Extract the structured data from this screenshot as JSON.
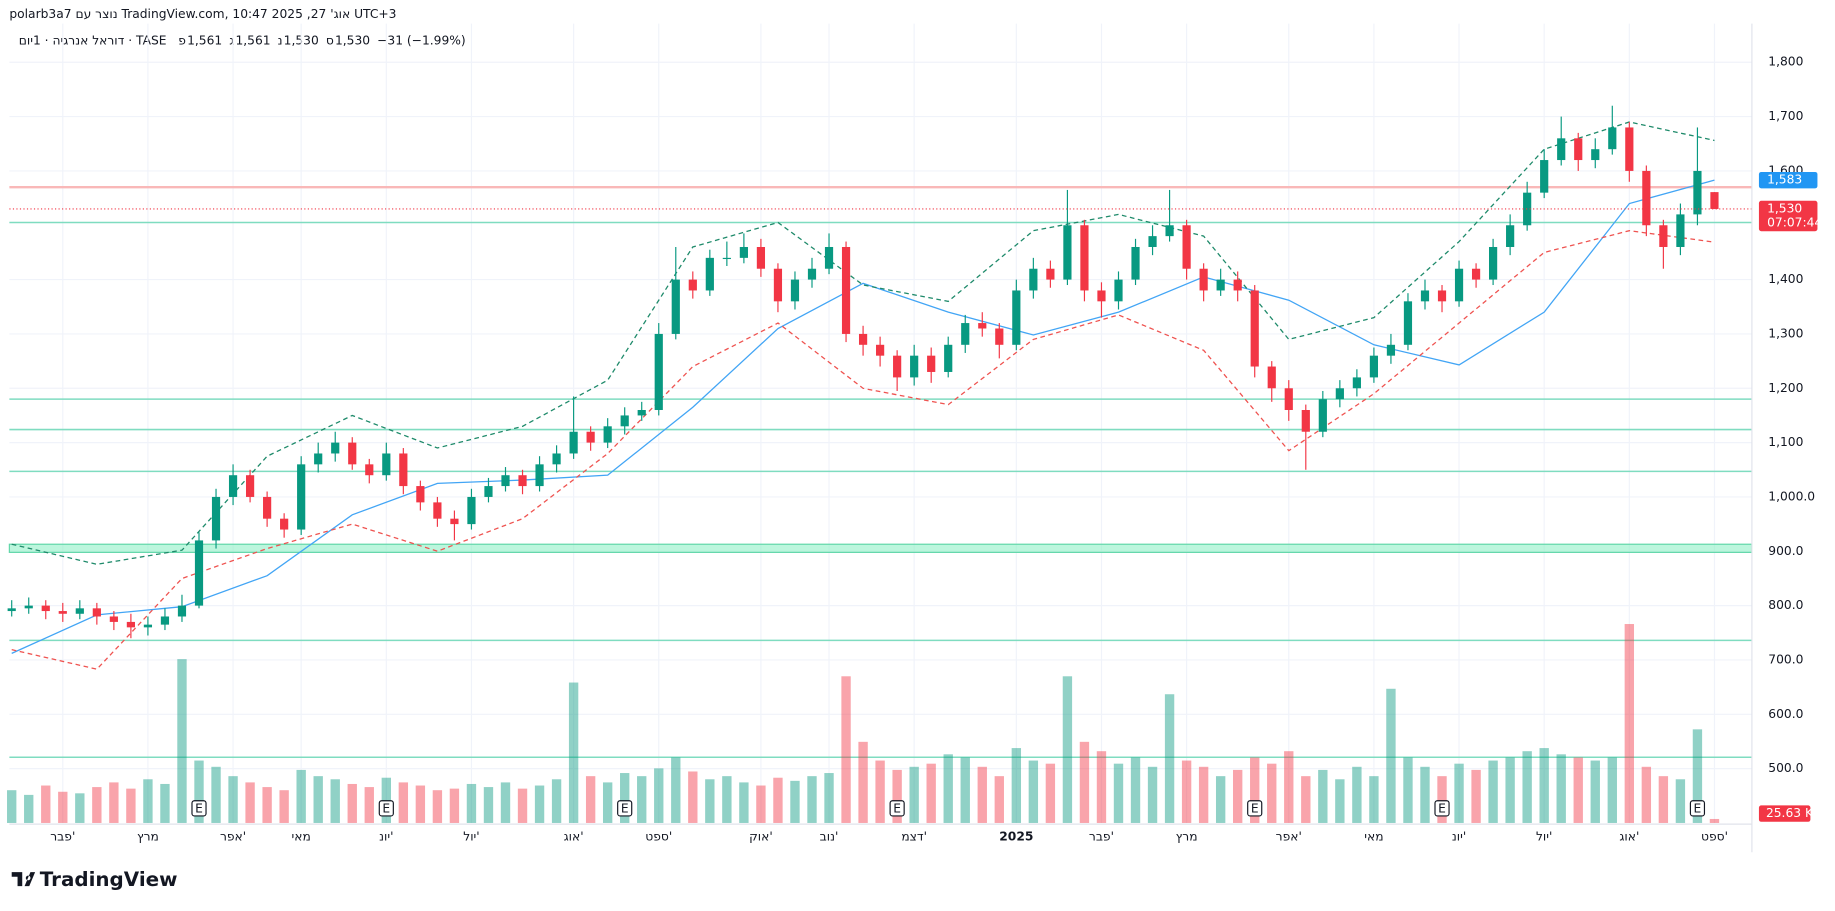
{
  "header": {
    "author_line": "polarb3a7 נוצר עם TradingView.com, אוג' 27, 2025 10:47 UTC+3"
  },
  "legend": {
    "symbol": "דוראל אנרגיה · 1יום · TASE",
    "ohlc": [
      {
        "key": "פ",
        "value": "1,561"
      },
      {
        "key": "ג",
        "value": "1,561"
      },
      {
        "key": "נ",
        "value": "1,530"
      },
      {
        "key": "ס",
        "value": "1,530"
      }
    ],
    "change": "−31 (−1.99%)"
  },
  "footer": {
    "logo": "TradingView"
  },
  "chart_data": {
    "type": "candlestick",
    "categories": [
      null,
      null,
      null,
      "פבר'",
      null,
      null,
      null,
      null,
      "מרץ",
      null,
      null,
      null,
      null,
      "אפר'",
      null,
      null,
      null,
      "מאי",
      null,
      null,
      null,
      null,
      "יונ'",
      null,
      null,
      null,
      null,
      "יול'",
      null,
      null,
      null,
      null,
      null,
      "אוג'",
      null,
      null,
      null,
      null,
      "ספט'",
      null,
      null,
      null,
      null,
      null,
      "אוק'",
      null,
      null,
      null,
      "נוב'",
      null,
      null,
      null,
      null,
      "דצמ'",
      null,
      null,
      null,
      null,
      null,
      "2025",
      null,
      null,
      null,
      null,
      "פבר'",
      null,
      null,
      null,
      null,
      "מרץ",
      null,
      null,
      null,
      null,
      null,
      "אפר'",
      null,
      null,
      null,
      null,
      "מאי",
      null,
      null,
      null,
      null,
      "יונ'",
      null,
      null,
      null,
      null,
      "יול'",
      null,
      null,
      null,
      null,
      "אוג'",
      null,
      null,
      null,
      null,
      "ספט'"
    ],
    "open": [
      790,
      795,
      800,
      790,
      785,
      795,
      780,
      770,
      760,
      765,
      780,
      800,
      920,
      1000,
      1040,
      1000,
      960,
      940,
      1060,
      1080,
      1100,
      1060,
      1040,
      1080,
      1020,
      990,
      960,
      950,
      1000,
      1020,
      1040,
      1020,
      1060,
      1080,
      1120,
      1100,
      1130,
      1150,
      1160,
      1300,
      1400,
      1380,
      1440,
      1440,
      1460,
      1420,
      1360,
      1400,
      1420,
      1460,
      1300,
      1280,
      1260,
      1220,
      1260,
      1230,
      1280,
      1320,
      1310,
      1280,
      1380,
      1420,
      1400,
      1500,
      1380,
      1360,
      1400,
      1460,
      1480,
      1500,
      1420,
      1380,
      1400,
      1380,
      1240,
      1200,
      1160,
      1120,
      1180,
      1200,
      1220,
      1260,
      1280,
      1360,
      1380,
      1360,
      1420,
      1400,
      1460,
      1500,
      1560,
      1620,
      1660,
      1620,
      1640,
      1680,
      1600,
      1500,
      1460,
      1520,
      1561
    ],
    "high": [
      810,
      815,
      810,
      805,
      810,
      805,
      790,
      785,
      780,
      795,
      820,
      935,
      1015,
      1060,
      1050,
      1010,
      970,
      1075,
      1100,
      1120,
      1110,
      1070,
      1100,
      1090,
      1030,
      1000,
      975,
      1015,
      1035,
      1055,
      1050,
      1075,
      1095,
      1185,
      1130,
      1145,
      1165,
      1175,
      1320,
      1460,
      1415,
      1455,
      1470,
      1485,
      1475,
      1430,
      1415,
      1440,
      1485,
      1470,
      1315,
      1295,
      1270,
      1280,
      1275,
      1295,
      1335,
      1340,
      1320,
      1400,
      1440,
      1435,
      1565,
      1510,
      1395,
      1415,
      1475,
      1500,
      1565,
      1510,
      1430,
      1420,
      1415,
      1390,
      1250,
      1215,
      1170,
      1195,
      1215,
      1235,
      1275,
      1300,
      1375,
      1400,
      1390,
      1435,
      1430,
      1475,
      1520,
      1580,
      1640,
      1700,
      1670,
      1660,
      1720,
      1690,
      1610,
      1510,
      1540,
      1680,
      1561
    ],
    "low": [
      780,
      785,
      775,
      770,
      775,
      765,
      755,
      740,
      745,
      755,
      770,
      795,
      905,
      985,
      990,
      945,
      925,
      930,
      1045,
      1065,
      1050,
      1025,
      1030,
      1005,
      975,
      945,
      920,
      940,
      990,
      1010,
      1005,
      1010,
      1045,
      1070,
      1085,
      1090,
      1115,
      1140,
      1150,
      1290,
      1365,
      1370,
      1425,
      1430,
      1405,
      1340,
      1345,
      1385,
      1410,
      1285,
      1260,
      1240,
      1195,
      1205,
      1210,
      1220,
      1265,
      1295,
      1255,
      1270,
      1365,
      1385,
      1390,
      1360,
      1330,
      1345,
      1390,
      1445,
      1470,
      1400,
      1360,
      1370,
      1360,
      1220,
      1175,
      1140,
      1050,
      1110,
      1165,
      1185,
      1210,
      1245,
      1270,
      1345,
      1340,
      1350,
      1385,
      1390,
      1445,
      1490,
      1550,
      1610,
      1600,
      1605,
      1630,
      1580,
      1480,
      1420,
      1445,
      1500,
      1530
    ],
    "close": [
      795,
      800,
      790,
      785,
      795,
      780,
      770,
      760,
      765,
      780,
      800,
      920,
      1000,
      1040,
      1000,
      960,
      940,
      1060,
      1080,
      1100,
      1060,
      1040,
      1080,
      1020,
      990,
      960,
      950,
      1000,
      1020,
      1040,
      1020,
      1060,
      1080,
      1120,
      1100,
      1130,
      1150,
      1160,
      1300,
      1400,
      1380,
      1440,
      1440,
      1460,
      1420,
      1360,
      1400,
      1420,
      1460,
      1300,
      1280,
      1260,
      1220,
      1260,
      1230,
      1280,
      1320,
      1310,
      1280,
      1380,
      1420,
      1400,
      1500,
      1380,
      1360,
      1400,
      1460,
      1480,
      1500,
      1420,
      1380,
      1400,
      1380,
      1240,
      1200,
      1160,
      1120,
      1180,
      1200,
      1220,
      1260,
      1280,
      1360,
      1380,
      1360,
      1420,
      1400,
      1460,
      1500,
      1560,
      1620,
      1660,
      1620,
      1640,
      1680,
      1600,
      1500,
      1460,
      1520,
      1600,
      1530
    ],
    "volume": [
      210,
      180,
      240,
      200,
      190,
      230,
      260,
      220,
      280,
      250,
      1050,
      400,
      360,
      300,
      260,
      230,
      210,
      340,
      300,
      280,
      250,
      230,
      290,
      260,
      240,
      210,
      220,
      250,
      230,
      260,
      220,
      240,
      280,
      900,
      300,
      260,
      320,
      300,
      350,
      420,
      330,
      280,
      300,
      260,
      240,
      290,
      270,
      300,
      320,
      940,
      520,
      400,
      340,
      360,
      380,
      440,
      420,
      360,
      300,
      480,
      400,
      380,
      940,
      520,
      460,
      380,
      420,
      360,
      825,
      400,
      360,
      300,
      340,
      420,
      380,
      460,
      300,
      340,
      280,
      360,
      300,
      860,
      420,
      360,
      300,
      380,
      340,
      400,
      420,
      460,
      480,
      440,
      420,
      400,
      420,
      1275,
      360,
      300,
      280,
      600,
      25.63
    ],
    "volume_label": "25.63 K",
    "volume_lim": [
      0,
      1500
    ],
    "up_color": "#089981",
    "down_color": "#f23645",
    "overlay_x": [
      0,
      5,
      10,
      15,
      20,
      25,
      30,
      35,
      40,
      45,
      50,
      55,
      60,
      65,
      70,
      75,
      80,
      85,
      90,
      95,
      100
    ],
    "overlays": [
      {
        "color": "#42a5f5",
        "dashed": false,
        "values": [
          712,
          783,
          798,
          855,
          967,
          1025,
          1031,
          1040,
          1165,
          1310,
          1393,
          1340,
          1298,
          1340,
          1405,
          1362,
          1280,
          1243,
          1340,
          1540,
          1583
        ]
      },
      {
        "color": "#1e8a6a",
        "dashed": true,
        "values": [
          913,
          876,
          902,
          1075,
          1150,
          1090,
          1130,
          1215,
          1460,
          1505,
          1390,
          1360,
          1490,
          1520,
          1480,
          1290,
          1330,
          1470,
          1640,
          1690,
          1656
        ]
      },
      {
        "color": "#ef5350",
        "dashed": true,
        "values": [
          719,
          683,
          850,
          905,
          950,
          900,
          960,
          1080,
          1240,
          1320,
          1200,
          1170,
          1290,
          1335,
          1270,
          1085,
          1190,
          1320,
          1450,
          1490,
          1469
        ]
      }
    ],
    "levels": [
      {
        "value": 1570,
        "color": "#f9b8b8"
      },
      {
        "value": 1505,
        "color": "#7fdcc0"
      },
      {
        "value": 1180,
        "color": "#7fdcc0"
      },
      {
        "value": 1124,
        "color": "#7fdcc0"
      },
      {
        "value": 1047,
        "color": "#7fdcc0"
      },
      {
        "value": 736,
        "color": "#7fdcc0"
      },
      {
        "value": 521,
        "color": "#7fdcc0"
      }
    ],
    "zone": {
      "range": [
        898,
        913
      ],
      "color": "#8ff0c6"
    },
    "earnings": [
      {
        "index": 11,
        "label": "E"
      },
      {
        "index": 22,
        "label": "E"
      },
      {
        "index": 36,
        "label": "E"
      },
      {
        "index": 52,
        "label": "E"
      },
      {
        "index": 73,
        "label": "E"
      },
      {
        "index": 84,
        "label": "E"
      },
      {
        "index": 99,
        "label": "E"
      }
    ],
    "price_tags": [
      {
        "value": 1583,
        "label": "1,583",
        "color": "#2196f3"
      },
      {
        "value": 1530,
        "label": "1,530",
        "sub": "07:07:44",
        "color": "#f23645"
      }
    ],
    "ylim": [
      400,
      1871
    ],
    "yticks": [
      {
        "value": 1800,
        "label": "1,800"
      },
      {
        "value": 1700,
        "label": "1,700"
      },
      {
        "value": 1600,
        "label": "1,600"
      },
      {
        "value": 1400,
        "label": "1,400"
      },
      {
        "value": 1300,
        "label": "1,300"
      },
      {
        "value": 1200,
        "label": "1,200"
      },
      {
        "value": 1100,
        "label": "1,100"
      },
      {
        "value": 1000,
        "label": "1,000.0"
      },
      {
        "value": 900,
        "label": "900.0"
      },
      {
        "value": 800,
        "label": "800.0"
      },
      {
        "value": 700,
        "label": "700.0"
      },
      {
        "value": 600,
        "label": "600.0"
      },
      {
        "value": 500,
        "label": "500.0"
      }
    ],
    "grid": true
  }
}
